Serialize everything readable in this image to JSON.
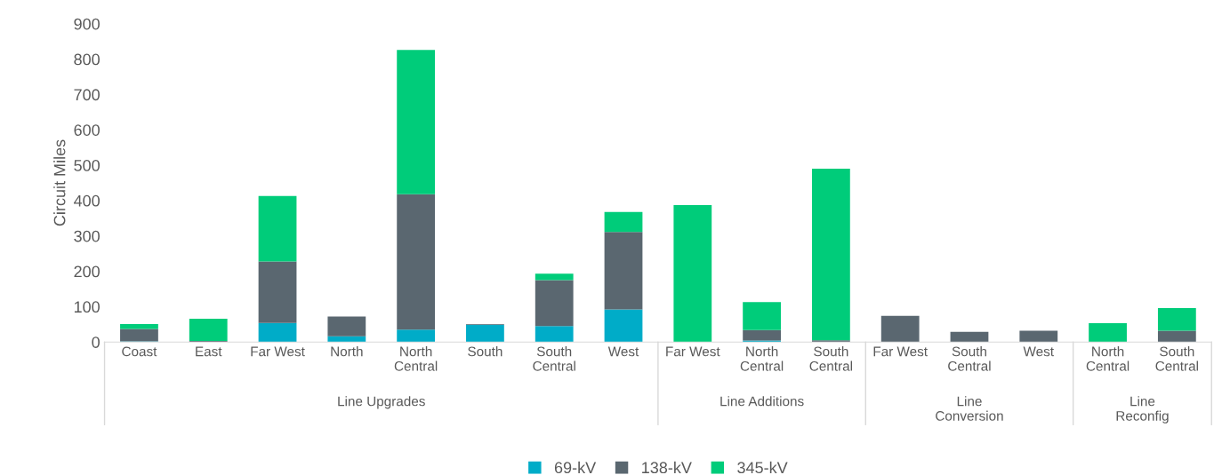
{
  "chart_data": {
    "type": "bar",
    "ylabel": "Circuit Miles",
    "stacked": true,
    "categories": [
      "Coast",
      "East",
      "Far West",
      "North",
      "North\nCentral",
      "South",
      "South\nCentral",
      "West",
      "Far West",
      "North\nCentral",
      "South\nCentral",
      "Far West",
      "South\nCentral",
      "West",
      "North\nCentral",
      "South\nCentral"
    ],
    "annotations": [
      "Line Upgrades",
      "Line Additions",
      "Line\nConversion",
      "Line\nReconfig"
    ],
    "series": [
      {
        "name": "69-kV",
        "color": "#00acc8",
        "values": [
          2,
          0,
          54,
          16,
          35,
          49,
          45,
          92,
          0,
          4,
          0,
          0,
          0,
          0,
          0,
          0
        ]
      },
      {
        "name": "138-kV",
        "color": "#5a6770",
        "values": [
          35,
          3,
          174,
          56,
          383,
          2,
          130,
          219,
          0,
          30,
          5,
          74,
          29,
          32,
          0,
          32
        ]
      },
      {
        "name": "345-kV",
        "color": "#00cc7a",
        "values": [
          14,
          63,
          185,
          0,
          408,
          0,
          18,
          57,
          387,
          79,
          485,
          0,
          0,
          0,
          53,
          64
        ]
      }
    ],
    "ylim": [
      0,
      900
    ],
    "yticks": [
      0,
      100,
      200,
      300,
      400,
      500,
      600,
      700,
      800,
      900
    ],
    "grid": false,
    "legend": "bottom"
  }
}
